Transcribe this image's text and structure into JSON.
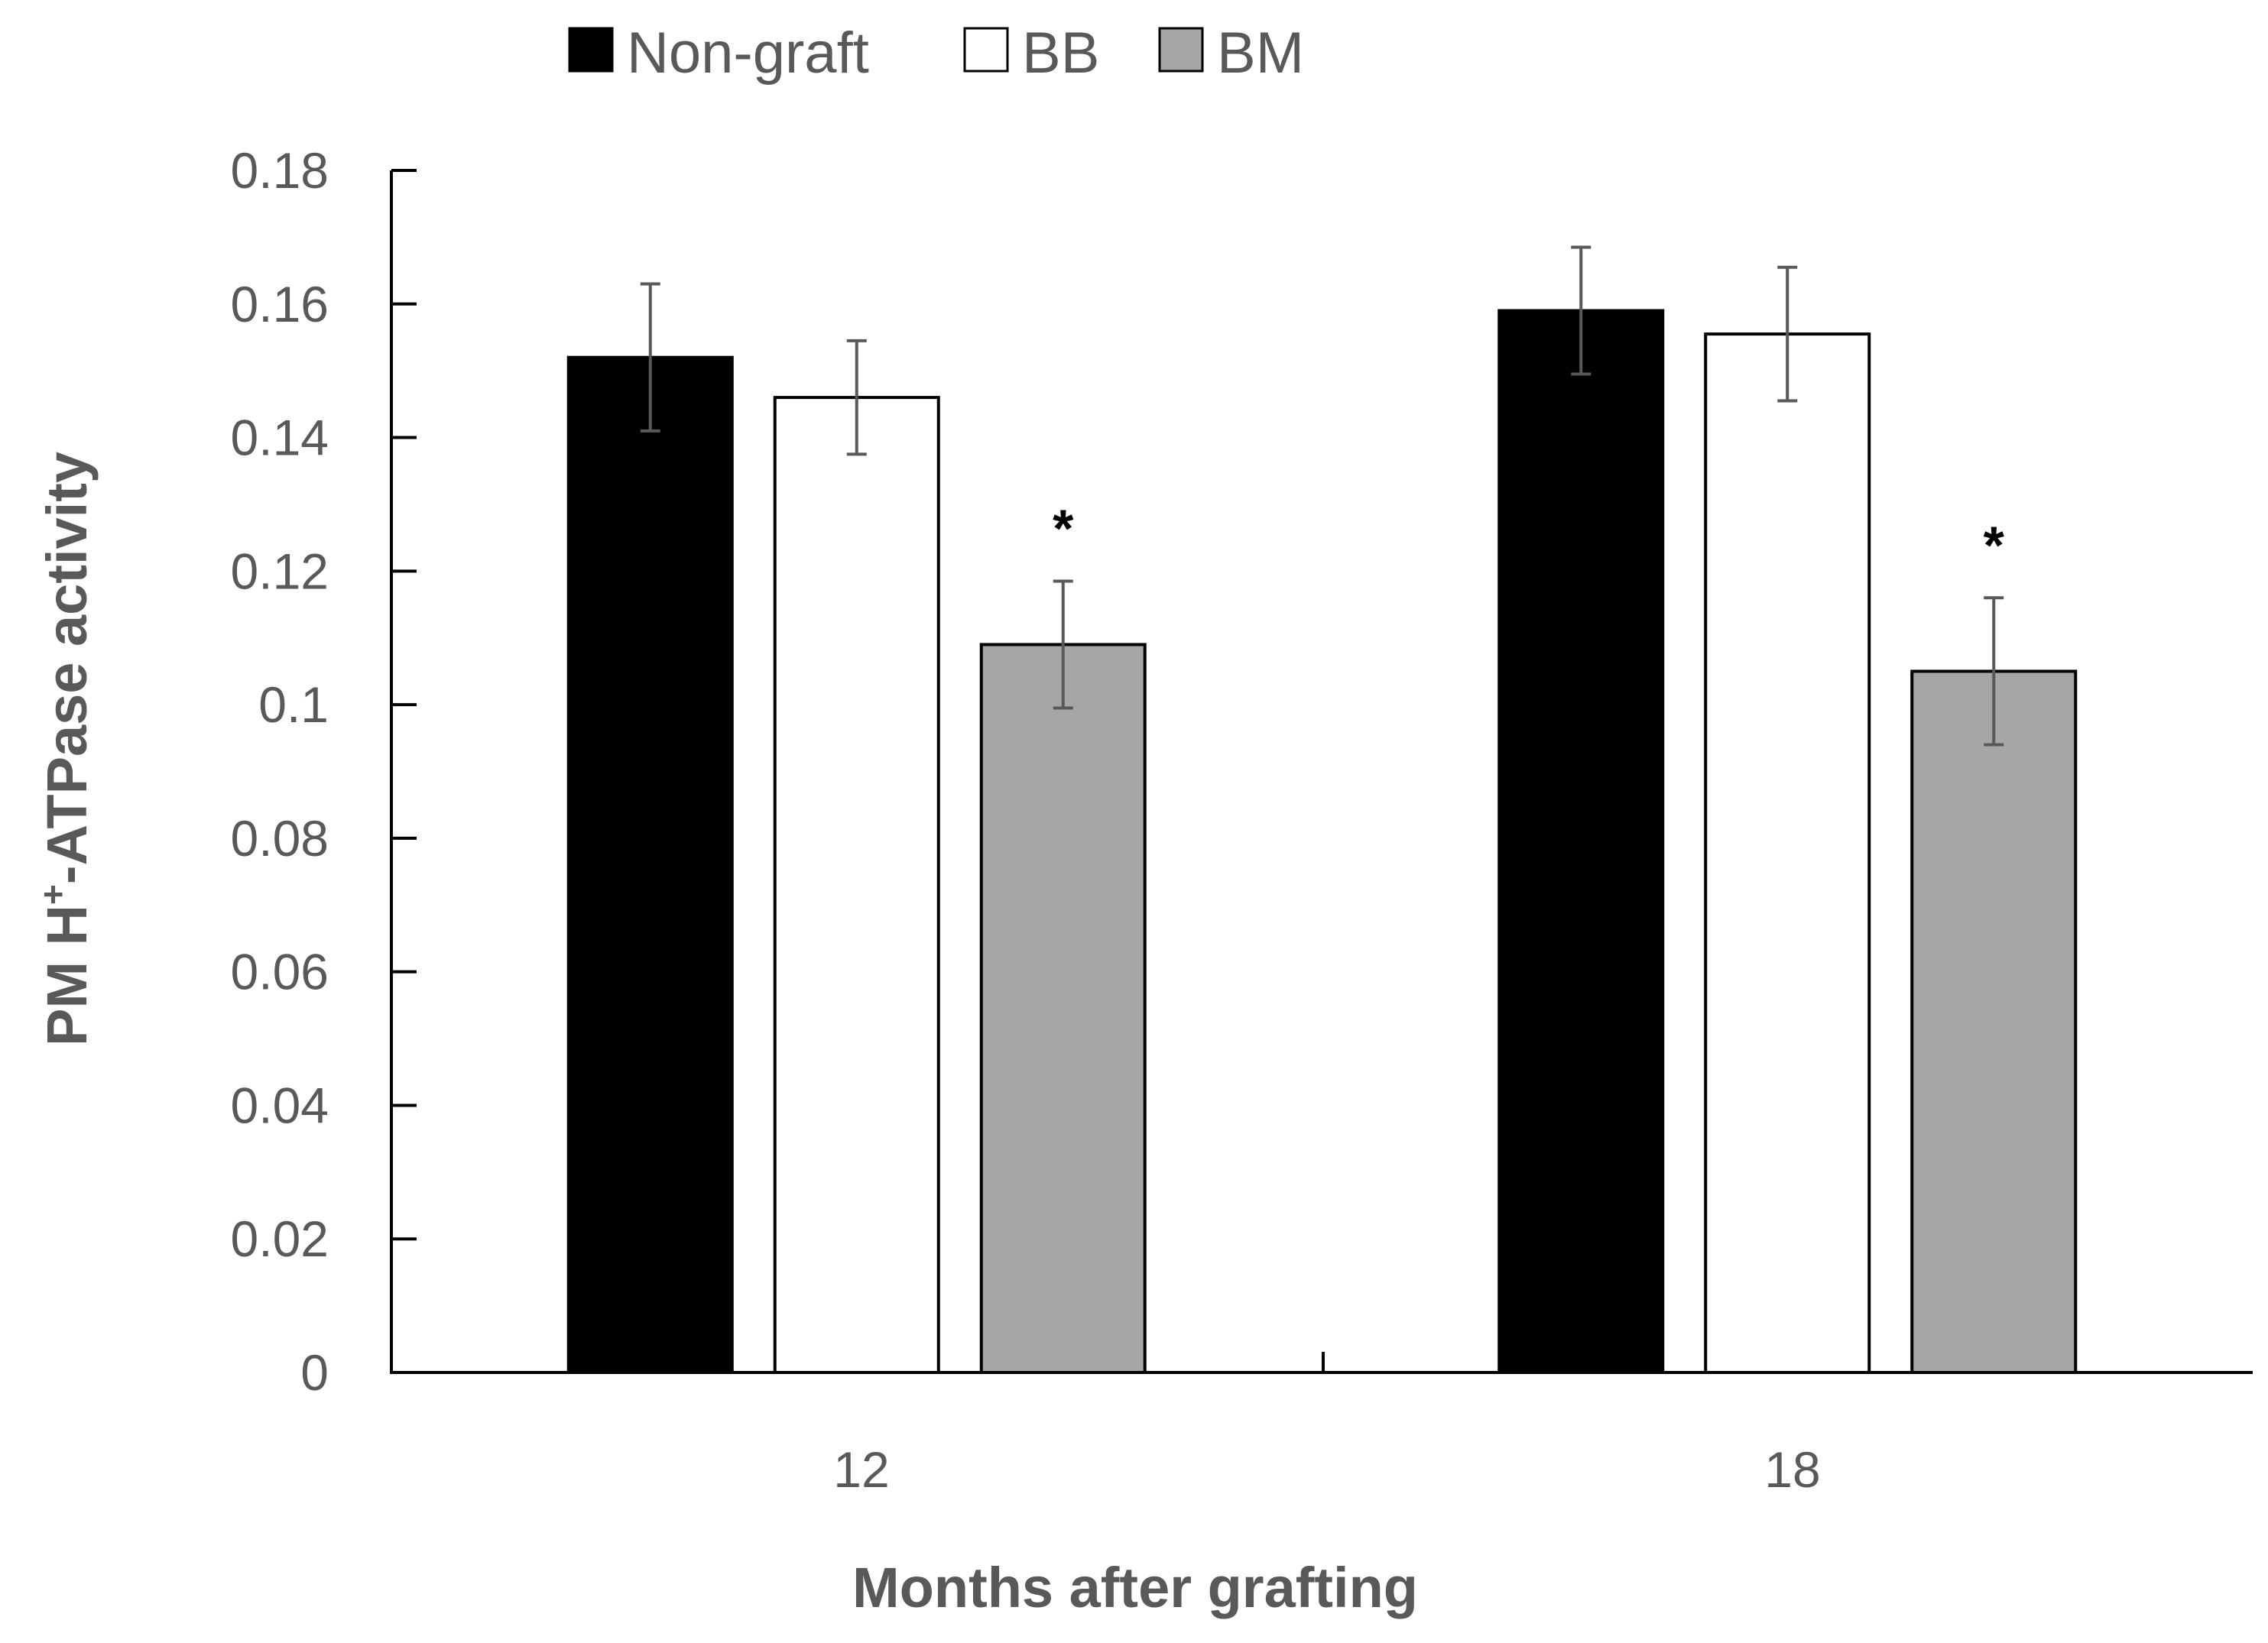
{
  "chart_data": {
    "type": "bar",
    "title": "",
    "xlabel": "Months after grafting",
    "ylabel": "PM H⁺-ATPase activity",
    "ylabel_main": "PM H",
    "ylabel_sup": "+",
    "ylabel_rest": "-ATPase activity",
    "categories": [
      "12",
      "18"
    ],
    "ylim": [
      0,
      0.18
    ],
    "ytick_step": 0.02,
    "ytick_labels": [
      "0",
      "0.02",
      "0.04",
      "0.06",
      "0.08",
      "0.1",
      "0.12",
      "0.14",
      "0.16",
      "0.18"
    ],
    "legend_position": "top",
    "series": [
      {
        "name": "Non-graft",
        "color": "#000000",
        "values": [
          0.152,
          0.159
        ],
        "errors": [
          0.011,
          0.0095
        ]
      },
      {
        "name": "BB",
        "color": "#ffffff",
        "values": [
          0.146,
          0.1555
        ],
        "errors": [
          0.0085,
          0.01
        ]
      },
      {
        "name": "BM",
        "color": "#a6a6a6",
        "values": [
          0.109,
          0.105
        ],
        "errors": [
          0.0095,
          0.011
        ]
      }
    ],
    "annotations": [
      {
        "text": "*",
        "category": "12",
        "series": "BM"
      },
      {
        "text": "*",
        "category": "18",
        "series": "BM"
      }
    ]
  }
}
